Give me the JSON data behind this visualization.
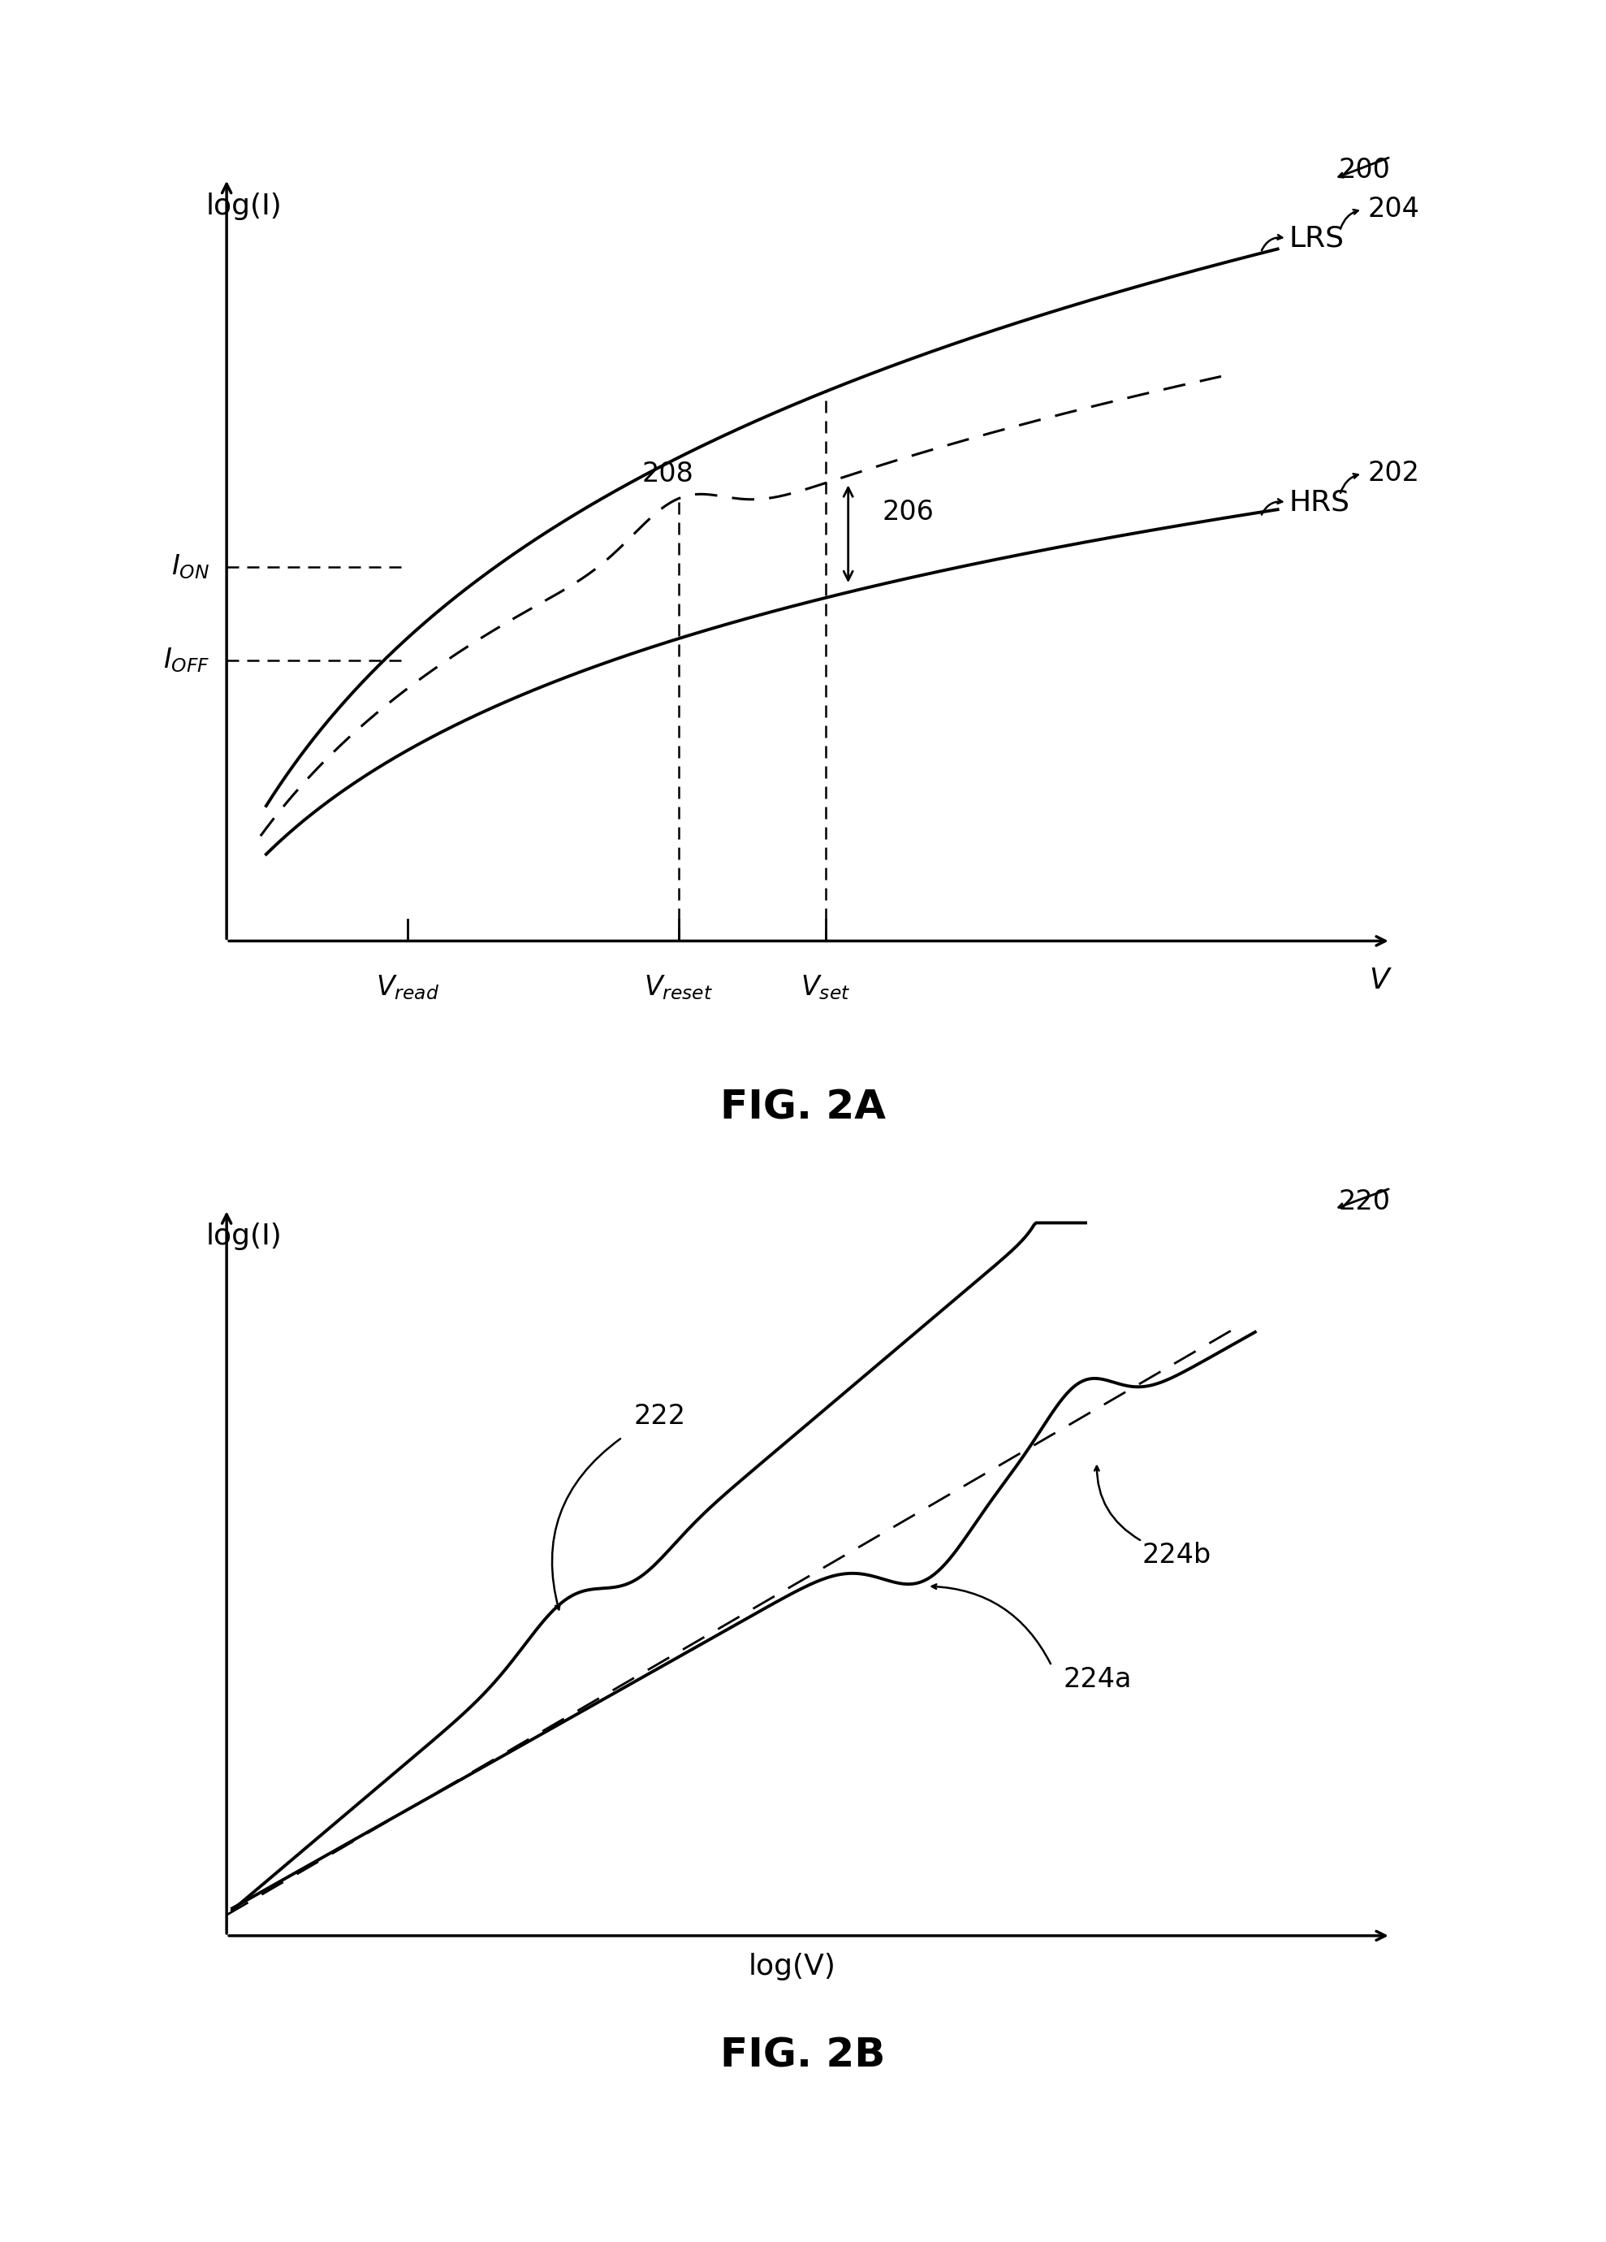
{
  "fig_width": 19.78,
  "fig_height": 27.6,
  "bg_color": "#ffffff",
  "fig2a_title": "FIG. 2A",
  "fig2b_title": "FIG. 2B",
  "fig2a_ref": "200",
  "fig2b_ref": "220",
  "fig2a_xlabel": "V",
  "fig2a_ylabel": "log(I)",
  "fig2b_xlabel": "log(V)",
  "fig2b_ylabel": "log(I)",
  "LRS_label": "LRS",
  "HRS_label": "HRS",
  "ref_204": "204",
  "ref_202": "202",
  "ref_208": "208",
  "ref_206": "206",
  "ref_222": "222",
  "ref_224a": "224a",
  "ref_224b": "224b",
  "fs_axis_label": 26,
  "fs_ref": 24,
  "fs_curve_label": 26,
  "fs_caption": 36,
  "fs_tick_label": 24,
  "lw_main": 2.8,
  "lw_axis": 2.5,
  "lw_dash": 2.2,
  "lw_dashed_ref": 2.0
}
